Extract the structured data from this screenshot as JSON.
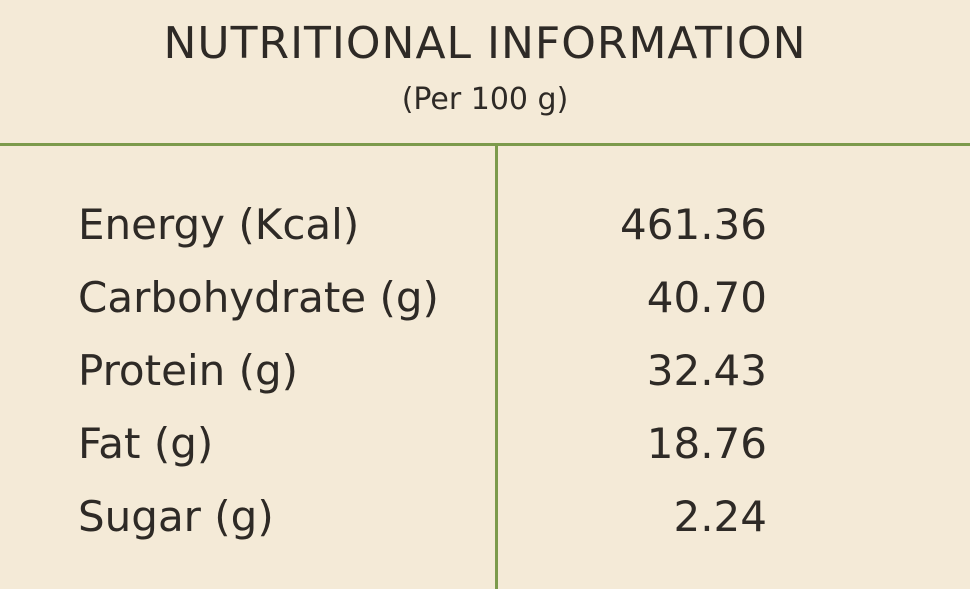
{
  "header": {
    "title": "NUTRITIONAL INFORMATION",
    "subtitle": "(Per 100 g)"
  },
  "colors": {
    "background": "#f4ead7",
    "divider": "#7c9a4c",
    "text": "#2e2a26"
  },
  "rows": [
    {
      "label": "Energy (Kcal)",
      "value": "461.36"
    },
    {
      "label": "Carbohydrate (g)",
      "value": "40.70"
    },
    {
      "label": "Protein (g)",
      "value": "32.43"
    },
    {
      "label": "Fat (g)",
      "value": "18.76"
    },
    {
      "label": "Sugar (g)",
      "value": "2.24"
    }
  ]
}
